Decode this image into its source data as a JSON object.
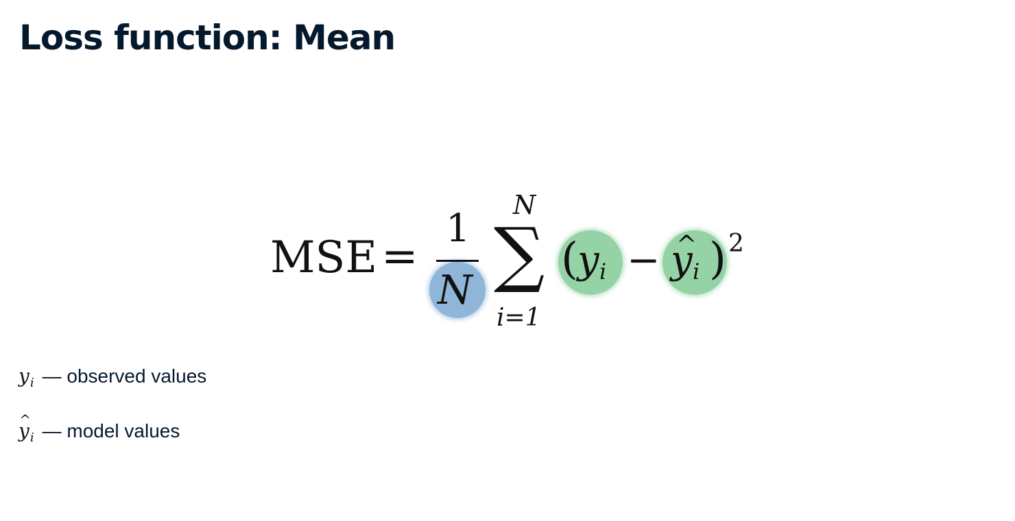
{
  "title": "Loss function: Mean",
  "formula": {
    "lhs": "MSE",
    "equals": "=",
    "numerator": "1",
    "denominator": "N",
    "sum_symbol": "∑",
    "sum_upper": "N",
    "sum_lower": "i=1",
    "open_paren": "(",
    "y": "y",
    "y_sub": "i",
    "minus": "−",
    "yhat": "y",
    "hat": "^",
    "yhat_sub": "i",
    "close_paren": ")",
    "exponent": "2"
  },
  "legend": [
    {
      "symbol": "y",
      "hat": "",
      "sub": "i",
      "text": "— observed values"
    },
    {
      "symbol": "y",
      "hat": "^",
      "sub": "i",
      "text": "— model values"
    }
  ],
  "colors": {
    "title": "#05192d",
    "highlight_denominator": "#8fb6d9",
    "highlight_terms": "#95d3a6"
  }
}
